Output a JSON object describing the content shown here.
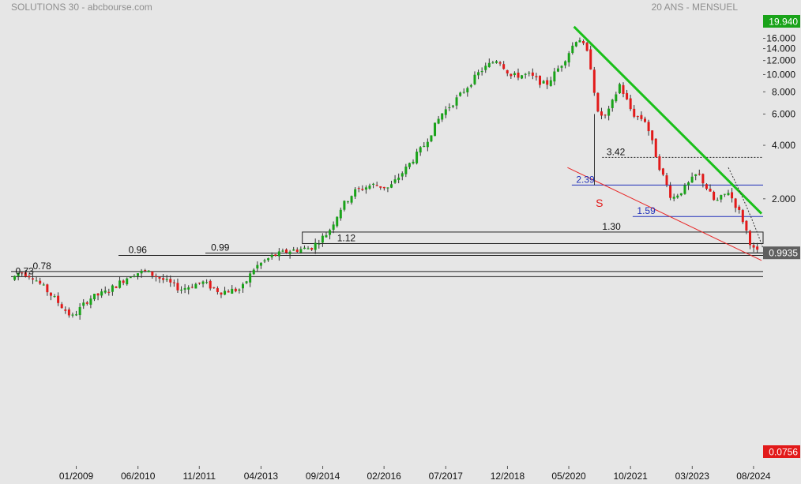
{
  "header": {
    "title": "SOLUTIONS 30 - abcbourse.com",
    "period": "20 ANS - MENSUEL"
  },
  "chart_data": {
    "type": "candlestick",
    "y_scale": "log",
    "ylim": [
      0.0756,
      19.94
    ],
    "y_ticks": [
      "16.000",
      "14.000",
      "12.000",
      "10.000",
      "8.000",
      "6.000",
      "4.000",
      "2.000"
    ],
    "y_tick_values": [
      16,
      14,
      12,
      10,
      8,
      6,
      4,
      2
    ],
    "badges": [
      {
        "label": "19.940",
        "value": 19.94,
        "color": "#19a319"
      },
      {
        "label": "0.9935",
        "value": 0.9935,
        "color": "#5f5f5f"
      },
      {
        "label": "0.0756",
        "value": 0.0756,
        "color": "#e21a1a"
      }
    ],
    "x_ticks": [
      "01/2009",
      "06/2010",
      "11/2011",
      "04/2013",
      "09/2014",
      "02/2016",
      "07/2017",
      "12/2018",
      "05/2020",
      "10/2021",
      "03/2023",
      "08/2024"
    ],
    "x_tick_dates": [
      2009.0,
      2010.42,
      2011.83,
      2013.25,
      2014.67,
      2016.08,
      2017.5,
      2018.92,
      2020.33,
      2021.75,
      2023.17,
      2024.58
    ],
    "x_range": [
      2007.5,
      2024.8
    ],
    "level_labels": [
      {
        "text": "0.73",
        "value": 0.73,
        "x": 2007.6
      },
      {
        "text": "0.78",
        "value": 0.78,
        "x": 2008.0
      },
      {
        "text": "0.96",
        "value": 0.96,
        "x": 2010.2
      },
      {
        "text": "0.99",
        "value": 0.99,
        "x": 2012.1
      },
      {
        "text": "1.12",
        "value": 1.12,
        "x": 2015.0
      },
      {
        "text": "1.30",
        "value": 1.3,
        "x": 2021.1
      },
      {
        "text": "3.42",
        "value": 3.42,
        "x": 2021.2
      },
      {
        "text": "2.39",
        "value": 2.39,
        "x": 2020.5
      },
      {
        "text": "1.59",
        "value": 1.59,
        "x": 2021.9
      }
    ],
    "annotations": [
      {
        "text": "S",
        "value": 1.8,
        "x": 2020.95
      }
    ],
    "colors": {
      "up": "#19a319",
      "down": "#e21a1a",
      "wick": "#333333",
      "trend": "#19c019",
      "support": "#e82626",
      "level_blue": "#1f2fb8"
    },
    "pivots": [
      [
        2007.5,
        0.7
      ],
      [
        2007.7,
        0.78
      ],
      [
        2008.0,
        0.73
      ],
      [
        2008.5,
        0.55
      ],
      [
        2008.9,
        0.43
      ],
      [
        2009.3,
        0.55
      ],
      [
        2009.7,
        0.6
      ],
      [
        2010.3,
        0.76
      ],
      [
        2010.6,
        0.78
      ],
      [
        2011.0,
        0.7
      ],
      [
        2011.4,
        0.62
      ],
      [
        2011.9,
        0.68
      ],
      [
        2012.3,
        0.6
      ],
      [
        2012.8,
        0.62
      ],
      [
        2013.1,
        0.82
      ],
      [
        2013.5,
        0.95
      ],
      [
        2013.9,
        1.02
      ],
      [
        2014.4,
        1.06
      ],
      [
        2014.8,
        1.3
      ],
      [
        2015.1,
        1.8
      ],
      [
        2015.4,
        2.2
      ],
      [
        2015.8,
        2.4
      ],
      [
        2016.2,
        2.3
      ],
      [
        2016.6,
        3.0
      ],
      [
        2017.0,
        4.0
      ],
      [
        2017.4,
        6.0
      ],
      [
        2017.8,
        7.5
      ],
      [
        2018.3,
        10.5
      ],
      [
        2018.7,
        12.3
      ],
      [
        2019.0,
        9.8
      ],
      [
        2019.4,
        10.0
      ],
      [
        2019.8,
        8.7
      ],
      [
        2020.2,
        11.8
      ],
      [
        2020.55,
        16.5
      ],
      [
        2020.8,
        12.5
      ],
      [
        2021.0,
        6.0
      ],
      [
        2021.2,
        5.8
      ],
      [
        2021.5,
        8.8
      ],
      [
        2021.8,
        6.0
      ],
      [
        2022.1,
        5.5
      ],
      [
        2022.4,
        3.1
      ],
      [
        2022.7,
        2.0
      ],
      [
        2023.0,
        2.3
      ],
      [
        2023.3,
        2.8
      ],
      [
        2023.7,
        1.9
      ],
      [
        2024.0,
        2.2
      ],
      [
        2024.3,
        1.6
      ],
      [
        2024.55,
        1.05
      ],
      [
        2024.7,
        0.99
      ]
    ]
  }
}
